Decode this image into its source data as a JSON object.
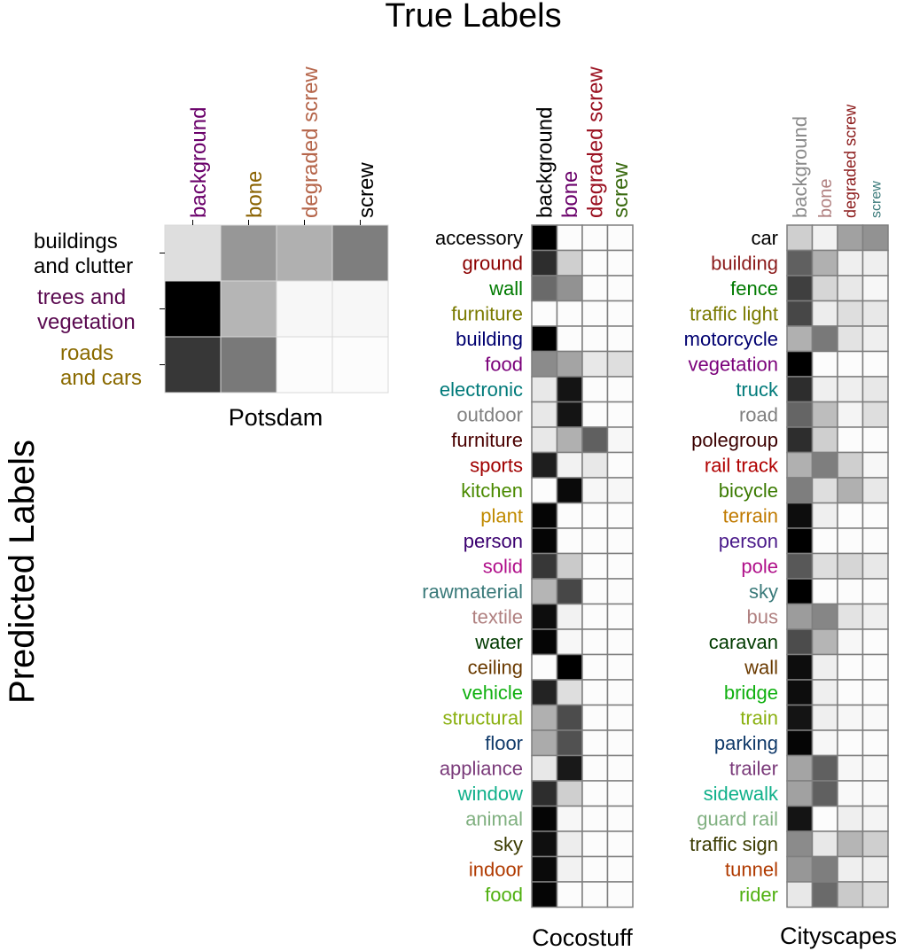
{
  "figure": {
    "title": "True Labels",
    "ylabel": "Predicted Labels"
  },
  "chart_data": [
    {
      "type": "heatmap",
      "name": "Potsdam",
      "x_categories": [
        {
          "label": "background",
          "color": "#6a006a"
        },
        {
          "label": "bone",
          "color": "#8a6200"
        },
        {
          "label": "degraded screw",
          "color": "#b5654a"
        },
        {
          "label": "screw",
          "color": "#000000"
        }
      ],
      "y_categories": [
        {
          "label": "buildings\nand clutter",
          "color": "#000000"
        },
        {
          "label": "trees and\nvegetation",
          "color": "#5a0a50"
        },
        {
          "label": "roads\nand cars",
          "color": "#8a6a00"
        }
      ],
      "colormap": "greys",
      "values": [
        [
          0.12,
          0.4,
          0.3,
          0.5
        ],
        [
          1.0,
          0.28,
          0.02,
          0.02
        ],
        [
          0.78,
          0.52,
          0.0,
          0.0
        ]
      ]
    },
    {
      "type": "heatmap",
      "name": "Cocostuff",
      "x_categories": [
        {
          "label": "background",
          "color": "#000000"
        },
        {
          "label": "bone",
          "color": "#6a006a"
        },
        {
          "label": "degraded screw",
          "color": "#9a1020"
        },
        {
          "label": "screw",
          "color": "#3a6a10"
        }
      ],
      "y_categories": [
        {
          "label": "accessory",
          "color": "#000000"
        },
        {
          "label": "ground",
          "color": "#8b0000"
        },
        {
          "label": "wall",
          "color": "#007a00"
        },
        {
          "label": "furniture",
          "color": "#7a7a00"
        },
        {
          "label": "building",
          "color": "#000070"
        },
        {
          "label": "food",
          "color": "#7a007a"
        },
        {
          "label": "electronic",
          "color": "#007a7a"
        },
        {
          "label": "outdoor",
          "color": "#808080"
        },
        {
          "label": "furniture",
          "color": "#4a0000"
        },
        {
          "label": "sports",
          "color": "#a00000"
        },
        {
          "label": "kitchen",
          "color": "#4a8a00"
        },
        {
          "label": "plant",
          "color": "#c08a00"
        },
        {
          "label": "person",
          "color": "#3a0070"
        },
        {
          "label": "solid",
          "color": "#b0108a"
        },
        {
          "label": "rawmaterial",
          "color": "#3a7a7a"
        },
        {
          "label": "textile",
          "color": "#b08080"
        },
        {
          "label": "water",
          "color": "#003a00"
        },
        {
          "label": "ceiling",
          "color": "#6a3a00"
        },
        {
          "label": "vehicle",
          "color": "#10b010"
        },
        {
          "label": "structural",
          "color": "#8ab010"
        },
        {
          "label": "floor",
          "color": "#103a6a"
        },
        {
          "label": "appliance",
          "color": "#7a3a7a"
        },
        {
          "label": "window",
          "color": "#10b08a"
        },
        {
          "label": "animal",
          "color": "#80b080"
        },
        {
          "label": "sky",
          "color": "#3a3a00"
        },
        {
          "label": "indoor",
          "color": "#b03a00"
        },
        {
          "label": "food",
          "color": "#50b010"
        }
      ],
      "colormap": "greys",
      "values": [
        [
          1.0,
          0.0,
          0.0,
          0.0
        ],
        [
          0.82,
          0.18,
          0.0,
          0.0
        ],
        [
          0.58,
          0.42,
          0.0,
          0.0
        ],
        [
          0.0,
          0.0,
          0.0,
          0.0
        ],
        [
          1.0,
          0.0,
          0.0,
          0.0
        ],
        [
          0.45,
          0.35,
          0.08,
          0.12
        ],
        [
          0.08,
          0.92,
          0.0,
          0.0
        ],
        [
          0.08,
          0.92,
          0.0,
          0.0
        ],
        [
          0.08,
          0.3,
          0.62,
          0.02
        ],
        [
          0.88,
          0.04,
          0.08,
          0.0
        ],
        [
          0.0,
          0.96,
          0.02,
          0.02
        ],
        [
          0.98,
          0.0,
          0.0,
          0.0
        ],
        [
          0.98,
          0.0,
          0.0,
          0.0
        ],
        [
          0.78,
          0.2,
          0.0,
          0.0
        ],
        [
          0.28,
          0.72,
          0.0,
          0.0
        ],
        [
          0.95,
          0.04,
          0.0,
          0.0
        ],
        [
          0.98,
          0.02,
          0.0,
          0.0
        ],
        [
          0.0,
          1.0,
          0.0,
          0.0
        ],
        [
          0.86,
          0.12,
          0.0,
          0.0
        ],
        [
          0.3,
          0.7,
          0.0,
          0.0
        ],
        [
          0.32,
          0.68,
          0.0,
          0.0
        ],
        [
          0.08,
          0.9,
          0.0,
          0.0
        ],
        [
          0.82,
          0.18,
          0.0,
          0.0
        ],
        [
          0.98,
          0.02,
          0.0,
          0.0
        ],
        [
          0.94,
          0.06,
          0.0,
          0.0
        ],
        [
          0.96,
          0.04,
          0.0,
          0.0
        ],
        [
          0.98,
          0.0,
          0.0,
          0.0
        ]
      ]
    },
    {
      "type": "heatmap",
      "name": "Cityscapes",
      "x_categories": [
        {
          "label": "background",
          "color": "#8a8a8a"
        },
        {
          "label": "bone",
          "color": "#b08080"
        },
        {
          "label": "degraded screw",
          "color": "#8b1a1a"
        },
        {
          "label": "screw",
          "color": "#3a7a7a"
        }
      ],
      "y_categories": [
        {
          "label": "car",
          "color": "#000000"
        },
        {
          "label": "building",
          "color": "#8b1a1a"
        },
        {
          "label": "fence",
          "color": "#007a00"
        },
        {
          "label": "traffic light",
          "color": "#7a7a00"
        },
        {
          "label": "motorcycle",
          "color": "#000070"
        },
        {
          "label": "vegetation",
          "color": "#7a007a"
        },
        {
          "label": "truck",
          "color": "#007a7a"
        },
        {
          "label": "road",
          "color": "#808080"
        },
        {
          "label": "polegroup",
          "color": "#3a0000"
        },
        {
          "label": "rail track",
          "color": "#b00000"
        },
        {
          "label": "bicycle",
          "color": "#3a7a00"
        },
        {
          "label": "terrain",
          "color": "#c07a00"
        },
        {
          "label": "person",
          "color": "#4a1a8a"
        },
        {
          "label": "pole",
          "color": "#b0108a"
        },
        {
          "label": "sky",
          "color": "#3a7a7a"
        },
        {
          "label": "bus",
          "color": "#b08080"
        },
        {
          "label": "caravan",
          "color": "#003a00"
        },
        {
          "label": "wall",
          "color": "#6a3a00"
        },
        {
          "label": "bridge",
          "color": "#10b010"
        },
        {
          "label": "train",
          "color": "#8ab010"
        },
        {
          "label": "parking",
          "color": "#103a6a"
        },
        {
          "label": "trailer",
          "color": "#7a3a7a"
        },
        {
          "label": "sidewalk",
          "color": "#10b08a"
        },
        {
          "label": "guard rail",
          "color": "#80b080"
        },
        {
          "label": "traffic sign",
          "color": "#3a3a00"
        },
        {
          "label": "tunnel",
          "color": "#b03a00"
        },
        {
          "label": "rider",
          "color": "#50b010"
        }
      ],
      "colormap": "greys",
      "values": [
        [
          0.18,
          0.04,
          0.36,
          0.42
        ],
        [
          0.62,
          0.3,
          0.05,
          0.05
        ],
        [
          0.75,
          0.15,
          0.08,
          0.02
        ],
        [
          0.72,
          0.06,
          0.12,
          0.08
        ],
        [
          0.3,
          0.52,
          0.1,
          0.05
        ],
        [
          1.0,
          0.0,
          0.0,
          0.0
        ],
        [
          0.82,
          0.05,
          0.05,
          0.08
        ],
        [
          0.6,
          0.25,
          0.03,
          0.12
        ],
        [
          0.82,
          0.18,
          0.0,
          0.0
        ],
        [
          0.3,
          0.5,
          0.18,
          0.02
        ],
        [
          0.5,
          0.12,
          0.3,
          0.08
        ],
        [
          0.95,
          0.05,
          0.0,
          0.0
        ],
        [
          1.0,
          0.0,
          0.0,
          0.0
        ],
        [
          0.65,
          0.12,
          0.15,
          0.08
        ],
        [
          1.0,
          0.0,
          0.0,
          0.0
        ],
        [
          0.38,
          0.47,
          0.1,
          0.05
        ],
        [
          0.7,
          0.28,
          0.02,
          0.0
        ],
        [
          0.95,
          0.05,
          0.0,
          0.0
        ],
        [
          0.95,
          0.05,
          0.0,
          0.0
        ],
        [
          0.92,
          0.05,
          0.02,
          0.01
        ],
        [
          0.98,
          0.02,
          0.0,
          0.0
        ],
        [
          0.35,
          0.62,
          0.02,
          0.01
        ],
        [
          0.36,
          0.62,
          0.01,
          0.01
        ],
        [
          0.92,
          0.0,
          0.05,
          0.03
        ],
        [
          0.45,
          0.08,
          0.28,
          0.18
        ],
        [
          0.4,
          0.5,
          0.05,
          0.05
        ],
        [
          0.08,
          0.58,
          0.2,
          0.12
        ]
      ]
    }
  ]
}
